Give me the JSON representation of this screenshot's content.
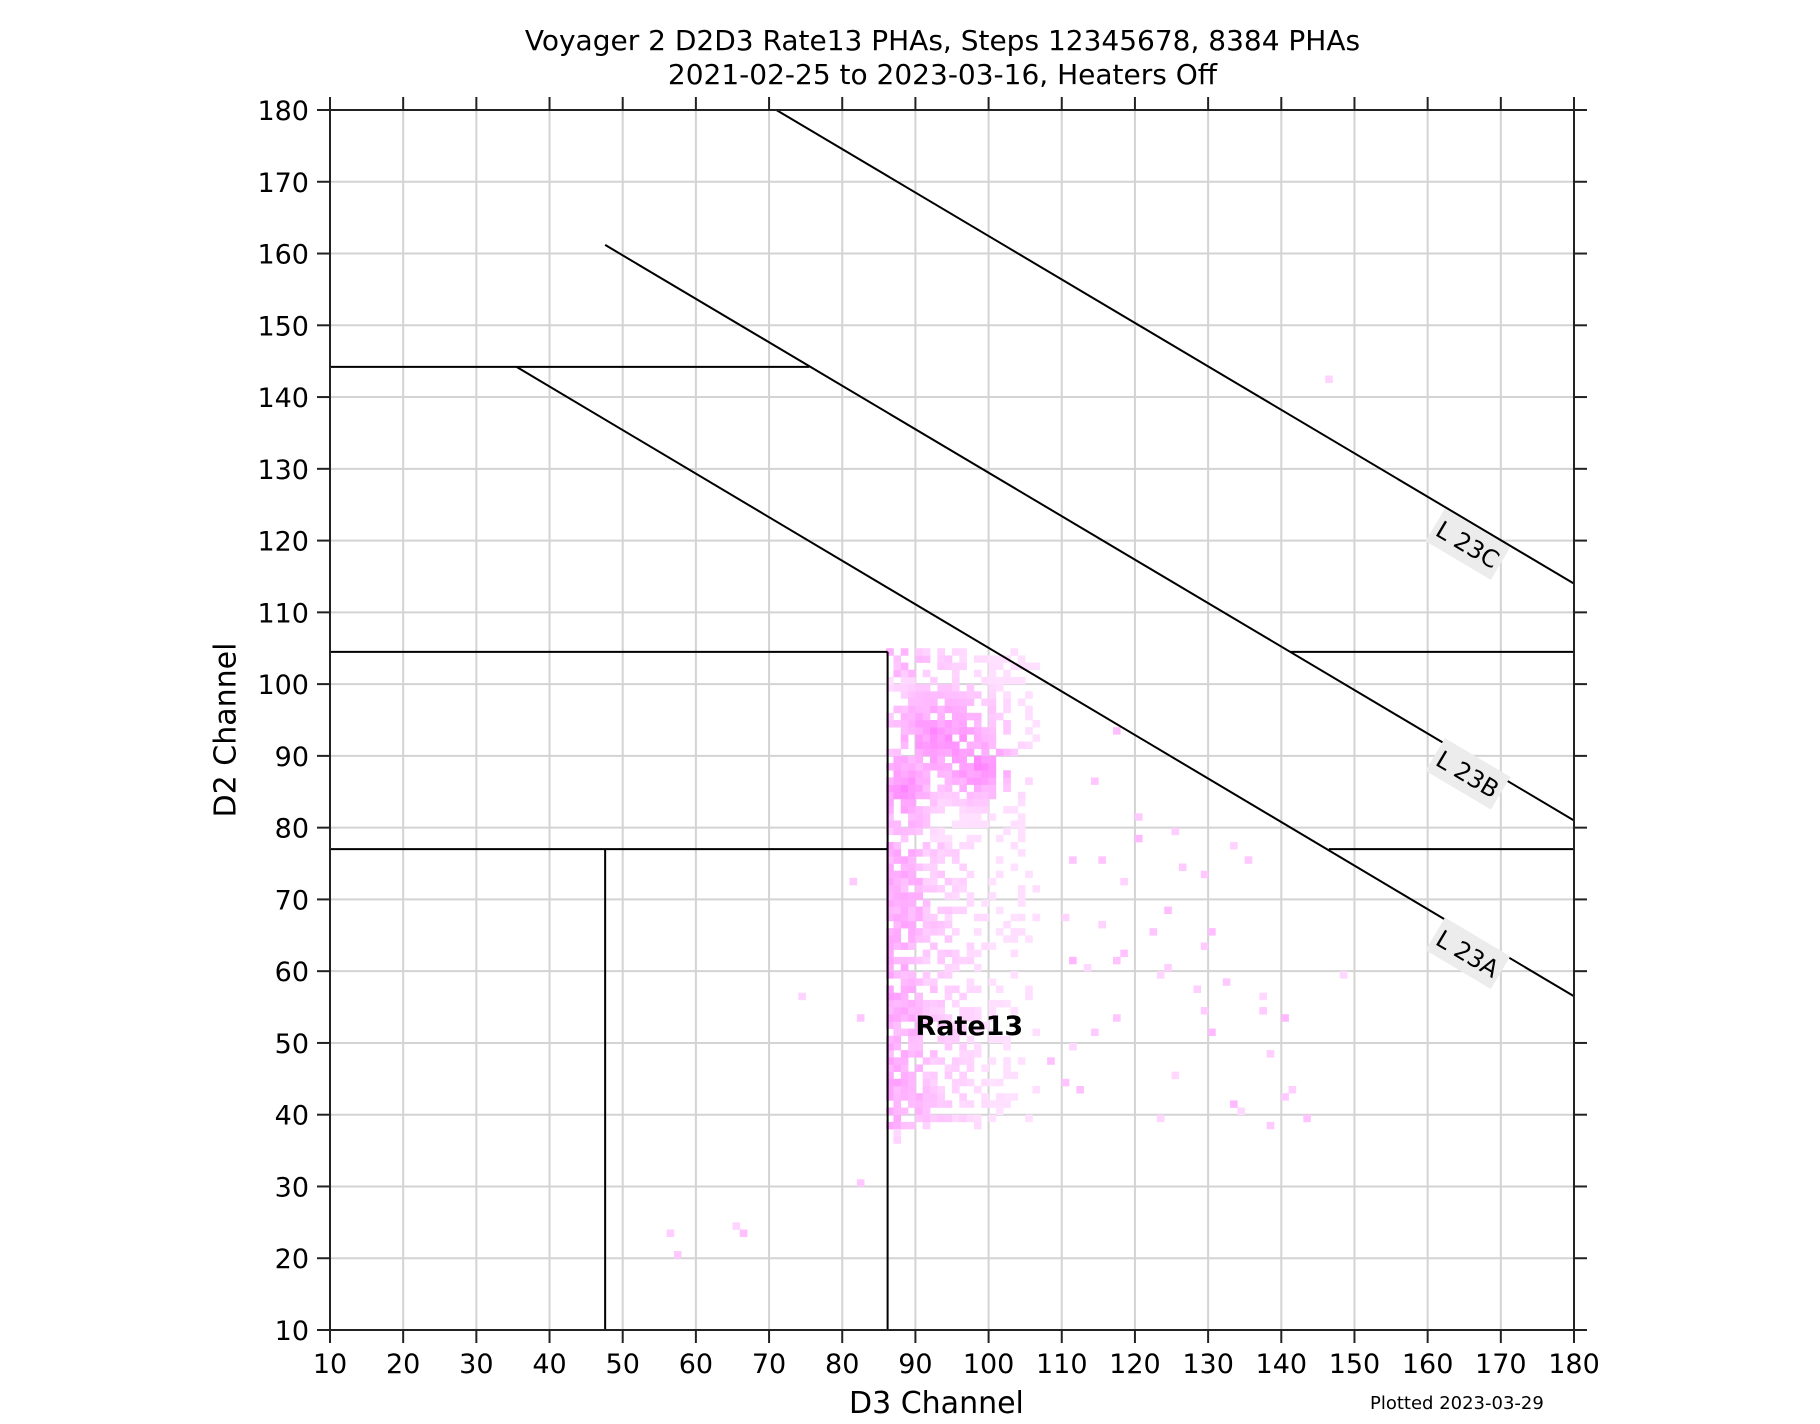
{
  "chart_data": {
    "type": "heatmap",
    "title": "Voyager 2 D2D3 Rate13 PHAs, Steps 12345678, 8384 PHAs",
    "subtitle": "2021-02-25 to 2023-03-16, Heaters Off",
    "xlabel": "D3 Channel",
    "ylabel": "D2 Channel",
    "xlim": [
      10,
      180
    ],
    "ylim": [
      10,
      180
    ],
    "xticks": [
      10,
      20,
      30,
      40,
      50,
      60,
      70,
      80,
      90,
      100,
      110,
      120,
      130,
      140,
      150,
      160,
      170,
      180
    ],
    "yticks": [
      10,
      20,
      30,
      40,
      50,
      60,
      70,
      80,
      90,
      100,
      110,
      120,
      130,
      140,
      150,
      160,
      170,
      180
    ],
    "grid": true,
    "footnote": "Plotted 2023-03-29",
    "region_label": {
      "text": "Rate13",
      "x": 90,
      "y": 52.5
    },
    "colormap": {
      "low": "#ffe6ff",
      "high": "#ff66ff"
    },
    "boundary_lines": [
      {
        "x": [
          10,
          75.5
        ],
        "y": [
          144.2,
          144.2
        ]
      },
      {
        "x": [
          10,
          86.2
        ],
        "y": [
          104.5,
          104.5
        ]
      },
      {
        "x": [
          141.2,
          180
        ],
        "y": [
          104.5,
          104.5
        ]
      },
      {
        "x": [
          10,
          86.2
        ],
        "y": [
          77,
          77
        ]
      },
      {
        "x": [
          146.5,
          180
        ],
        "y": [
          77,
          77
        ]
      },
      {
        "x": [
          47.6,
          47.6
        ],
        "y": [
          10,
          77
        ]
      },
      {
        "x": [
          86.2,
          86.2
        ],
        "y": [
          10,
          104.5
        ]
      },
      {
        "x": [
          35.5,
          180
        ],
        "y": [
          144.2,
          56.5
        ],
        "label": "L23A",
        "label_at": [
          165.5,
          62.5
        ]
      },
      {
        "x": [
          47.6,
          180
        ],
        "y": [
          161.2,
          81
        ],
        "label": "L23B",
        "label_at": [
          165.5,
          87.5
        ]
      },
      {
        "x": [
          71,
          180
        ],
        "y": [
          180,
          114
        ],
        "label": "L23C",
        "label_at": [
          165.5,
          119.5
        ]
      }
    ],
    "cluster_regions": [
      {
        "x": [
          86,
          101
        ],
        "y": [
          80,
          100
        ],
        "density": "high",
        "peak": [
          93,
          92
        ]
      },
      {
        "x": [
          86,
          106
        ],
        "y": [
          38,
          104
        ],
        "density": "medium"
      }
    ],
    "sparse_points": [
      [
        146,
        142
      ],
      [
        117,
        93
      ],
      [
        120,
        81
      ],
      [
        120,
        78
      ],
      [
        125,
        79
      ],
      [
        114,
        86
      ],
      [
        111,
        75
      ],
      [
        115,
        75
      ],
      [
        126,
        74
      ],
      [
        129,
        73
      ],
      [
        133,
        77
      ],
      [
        135,
        75
      ],
      [
        118,
        72
      ],
      [
        122,
        65
      ],
      [
        124,
        68
      ],
      [
        130,
        65
      ],
      [
        117,
        61
      ],
      [
        118,
        62
      ],
      [
        113,
        60
      ],
      [
        110,
        67
      ],
      [
        111,
        61
      ],
      [
        115,
        66
      ],
      [
        129,
        63
      ],
      [
        132,
        58
      ],
      [
        124,
        60
      ],
      [
        123,
        59
      ],
      [
        137,
        56
      ],
      [
        137,
        54
      ],
      [
        128,
        57
      ],
      [
        129,
        54
      ],
      [
        140,
        53
      ],
      [
        148,
        59
      ],
      [
        117,
        53
      ],
      [
        114,
        51
      ],
      [
        130,
        51
      ],
      [
        138,
        48
      ],
      [
        133,
        41
      ],
      [
        134,
        40
      ],
      [
        140,
        42
      ],
      [
        141,
        43
      ],
      [
        138,
        38
      ],
      [
        143,
        39
      ],
      [
        123,
        39
      ],
      [
        125,
        45
      ],
      [
        112,
        43
      ],
      [
        111,
        49
      ],
      [
        110,
        44
      ],
      [
        108,
        47
      ],
      [
        81,
        72
      ],
      [
        82,
        53
      ],
      [
        74,
        56
      ],
      [
        82,
        30
      ],
      [
        56,
        23
      ],
      [
        57,
        20
      ],
      [
        65,
        24
      ],
      [
        66,
        23
      ]
    ]
  }
}
